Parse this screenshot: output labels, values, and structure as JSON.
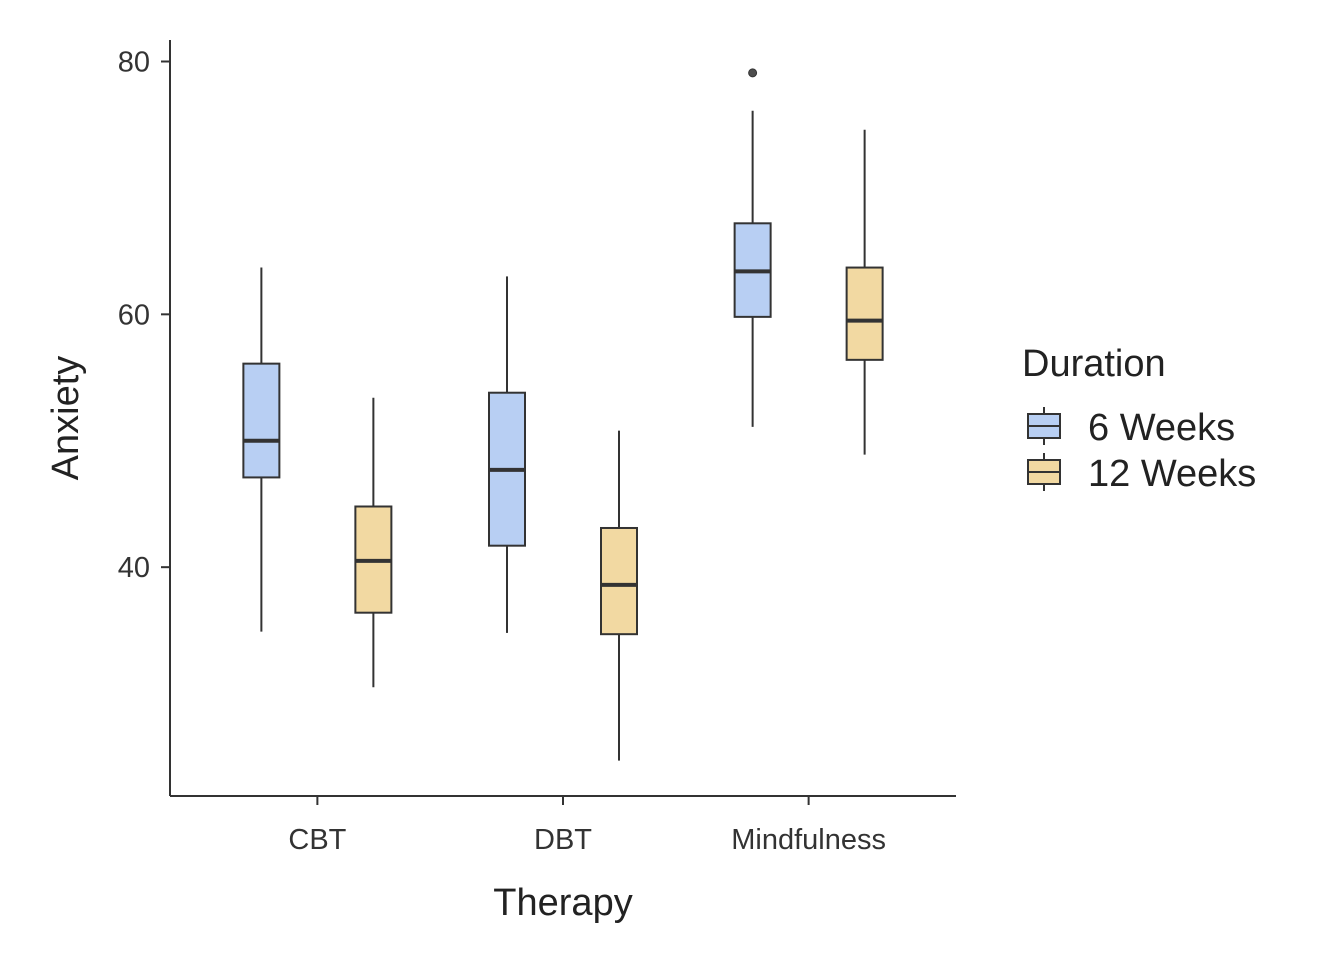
{
  "chart_data": {
    "type": "boxplot",
    "xlabel": "Therapy",
    "ylabel": "Anxiety",
    "categories": [
      "CBT",
      "DBT",
      "Mindfulness"
    ],
    "ylim": [
      21.9,
      81.7
    ],
    "yticks": [
      40,
      60,
      80
    ],
    "legend": {
      "title": "Duration",
      "position": "right"
    },
    "series": [
      {
        "name": "6 Weeks",
        "color": "#b8cff3",
        "boxes": [
          {
            "category": "CBT",
            "min": 34.9,
            "q1": 47.1,
            "median": 50.0,
            "q3": 56.1,
            "max": 63.7,
            "outliers": []
          },
          {
            "category": "DBT",
            "min": 34.8,
            "q1": 41.7,
            "median": 47.7,
            "q3": 53.8,
            "max": 63.0,
            "outliers": []
          },
          {
            "category": "Mindfulness",
            "min": 51.1,
            "q1": 59.8,
            "median": 63.4,
            "q3": 67.2,
            "max": 76.1,
            "outliers": [
              79.1
            ]
          }
        ]
      },
      {
        "name": "12 Weeks",
        "color": "#f2d9a2",
        "boxes": [
          {
            "category": "CBT",
            "min": 30.5,
            "q1": 36.4,
            "median": 40.5,
            "q3": 44.8,
            "max": 53.4,
            "outliers": []
          },
          {
            "category": "DBT",
            "min": 24.7,
            "q1": 34.7,
            "median": 38.6,
            "q3": 43.1,
            "max": 50.8,
            "outliers": []
          },
          {
            "category": "Mindfulness",
            "min": 48.9,
            "q1": 56.4,
            "median": 59.5,
            "q3": 63.7,
            "max": 74.6,
            "outliers": []
          }
        ]
      }
    ]
  }
}
